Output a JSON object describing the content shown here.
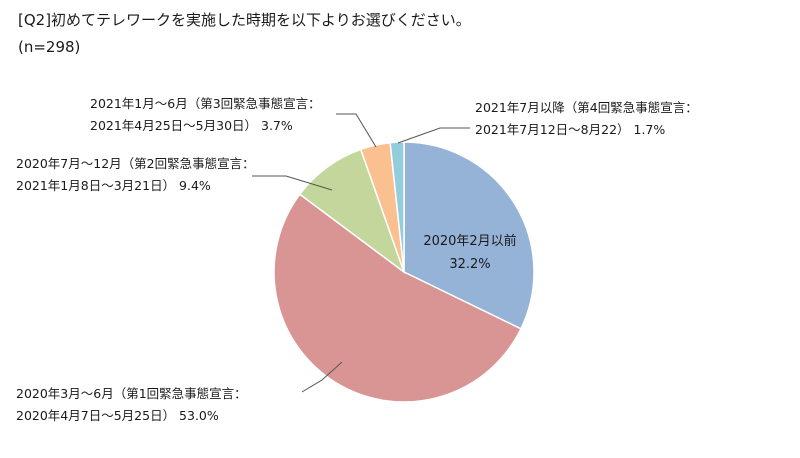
{
  "title": "[Q2]初めてテレワークを実施した時期を以下よりお選びください。",
  "subtitle": "(n=298)",
  "chart_data": {
    "type": "pie",
    "slices": [
      {
        "label_lines": [
          "2020年2月以前",
          "32.2%"
        ],
        "value": 32.2,
        "color": "#95b3d7"
      },
      {
        "label_lines": [
          "2020年3月～6月（第1回緊急事態宣言：",
          "2020年4月7日～5月25日） 53.0%"
        ],
        "value": 53.0,
        "color": "#d99594"
      },
      {
        "label_lines": [
          "2020年7月～12月（第2回緊急事態宣言：",
          "2021年1月8日～3月21日） 9.4%"
        ],
        "value": 9.4,
        "color": "#c3d69b"
      },
      {
        "label_lines": [
          "2021年1月～6月（第3回緊急事態宣言：",
          "2021年4月25日～5月30日） 3.7%"
        ],
        "value": 3.7,
        "color": "#fac090"
      },
      {
        "label_lines": [
          "2021年7月以降（第4回緊急事態宣言：",
          "2021年7月12日～8月22） 1.7%"
        ],
        "value": 1.7,
        "color": "#93cddd"
      }
    ]
  }
}
